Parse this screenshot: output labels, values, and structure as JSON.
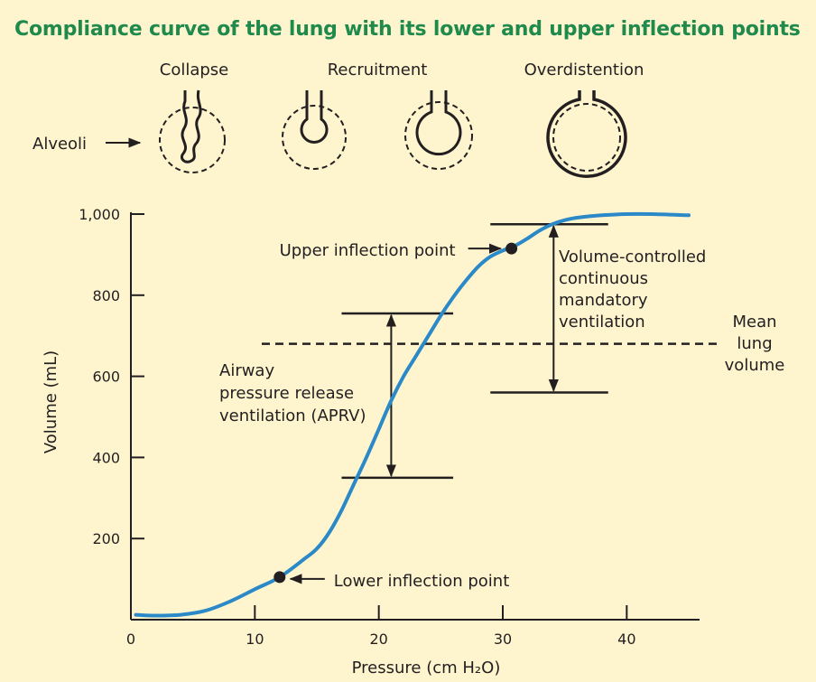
{
  "title": "Compliance curve of the lung with its lower and upper inflection points",
  "alveoli": {
    "label": "Alveoli",
    "states": [
      "Collapse",
      "Recruitment",
      "Overdistention"
    ]
  },
  "colors": {
    "curve": "#2b89c8",
    "title": "#1f8a4c",
    "background": "#fef5cf",
    "ink": "#231f20"
  },
  "chart_data": {
    "type": "line",
    "xlabel": "Pressure (cm H₂O)",
    "ylabel": "Volume (mL)",
    "xlim": [
      0,
      45
    ],
    "ylim": [
      0,
      1000
    ],
    "x_ticks": [
      0,
      10,
      20,
      30,
      40
    ],
    "x_tick_labels": [
      "0",
      "10",
      "20",
      "30",
      "40"
    ],
    "y_ticks": [
      200,
      400,
      600,
      800,
      1000
    ],
    "y_tick_labels": [
      "200",
      "400",
      "600",
      "800",
      "1,000"
    ],
    "series": [
      {
        "x": [
          0.4,
          2,
          4,
          6,
          8,
          10,
          12,
          14,
          15,
          16,
          17,
          18,
          19,
          20,
          21,
          22,
          23,
          24,
          25,
          26,
          27,
          28,
          29,
          30,
          31,
          32,
          33,
          34,
          35,
          36,
          38,
          40,
          42,
          45
        ],
        "y": [
          12,
          10,
          12,
          22,
          45,
          75,
          105,
          150,
          175,
          215,
          270,
          335,
          400,
          470,
          540,
          600,
          650,
          700,
          750,
          795,
          835,
          870,
          895,
          910,
          922,
          940,
          960,
          975,
          985,
          991,
          997,
          1000,
          1000,
          997
        ]
      }
    ],
    "points": [
      {
        "label": "Lower inflection point",
        "x": 12,
        "y": 105
      },
      {
        "label": "Upper inflection point",
        "x": 30.7,
        "y": 915
      }
    ],
    "mean_lung_volume": {
      "label": "Mean lung volume",
      "label_lines": [
        "Mean",
        "lung",
        "volume"
      ],
      "y": 680
    },
    "ranges": [
      {
        "label_lines": [
          "Airway",
          "pressure release",
          "ventilation (APRV)"
        ],
        "x": 21,
        "x_from": 17,
        "x_to": 26,
        "y_low": 350,
        "y_high": 755
      },
      {
        "label_lines": [
          "Volume-controlled",
          "continuous",
          "mandatory",
          "ventilation"
        ],
        "x": 34.1,
        "x_from": 29,
        "x_to": 38.5,
        "y_low": 560,
        "y_high": 975
      }
    ]
  }
}
